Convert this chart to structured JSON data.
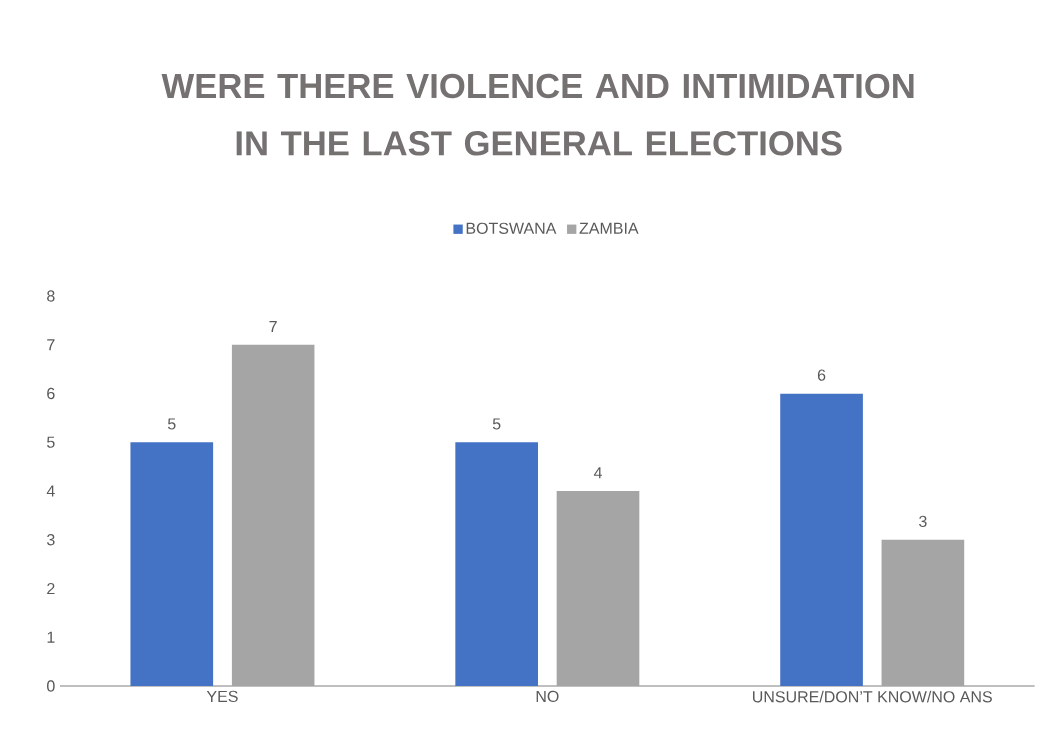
{
  "chart_data": {
    "type": "bar",
    "title": "WERE THERE VIOLENCE AND INTIMIDATION IN THE LAST GENERAL ELECTIONS",
    "categories": [
      "YES",
      "NO",
      "UNSURE/DON’T KNOW/NO ANS"
    ],
    "series": [
      {
        "name": "BOTSWANA",
        "color": "#4472c4",
        "values": [
          5,
          5,
          6
        ]
      },
      {
        "name": "ZAMBIA",
        "color": "#a5a5a5",
        "values": [
          7,
          4,
          3
        ]
      }
    ],
    "ylim": [
      0,
      8
    ],
    "yticks": [
      0,
      1,
      2,
      3,
      4,
      5,
      6,
      7,
      8
    ],
    "data_labels": true,
    "legend": "top"
  }
}
